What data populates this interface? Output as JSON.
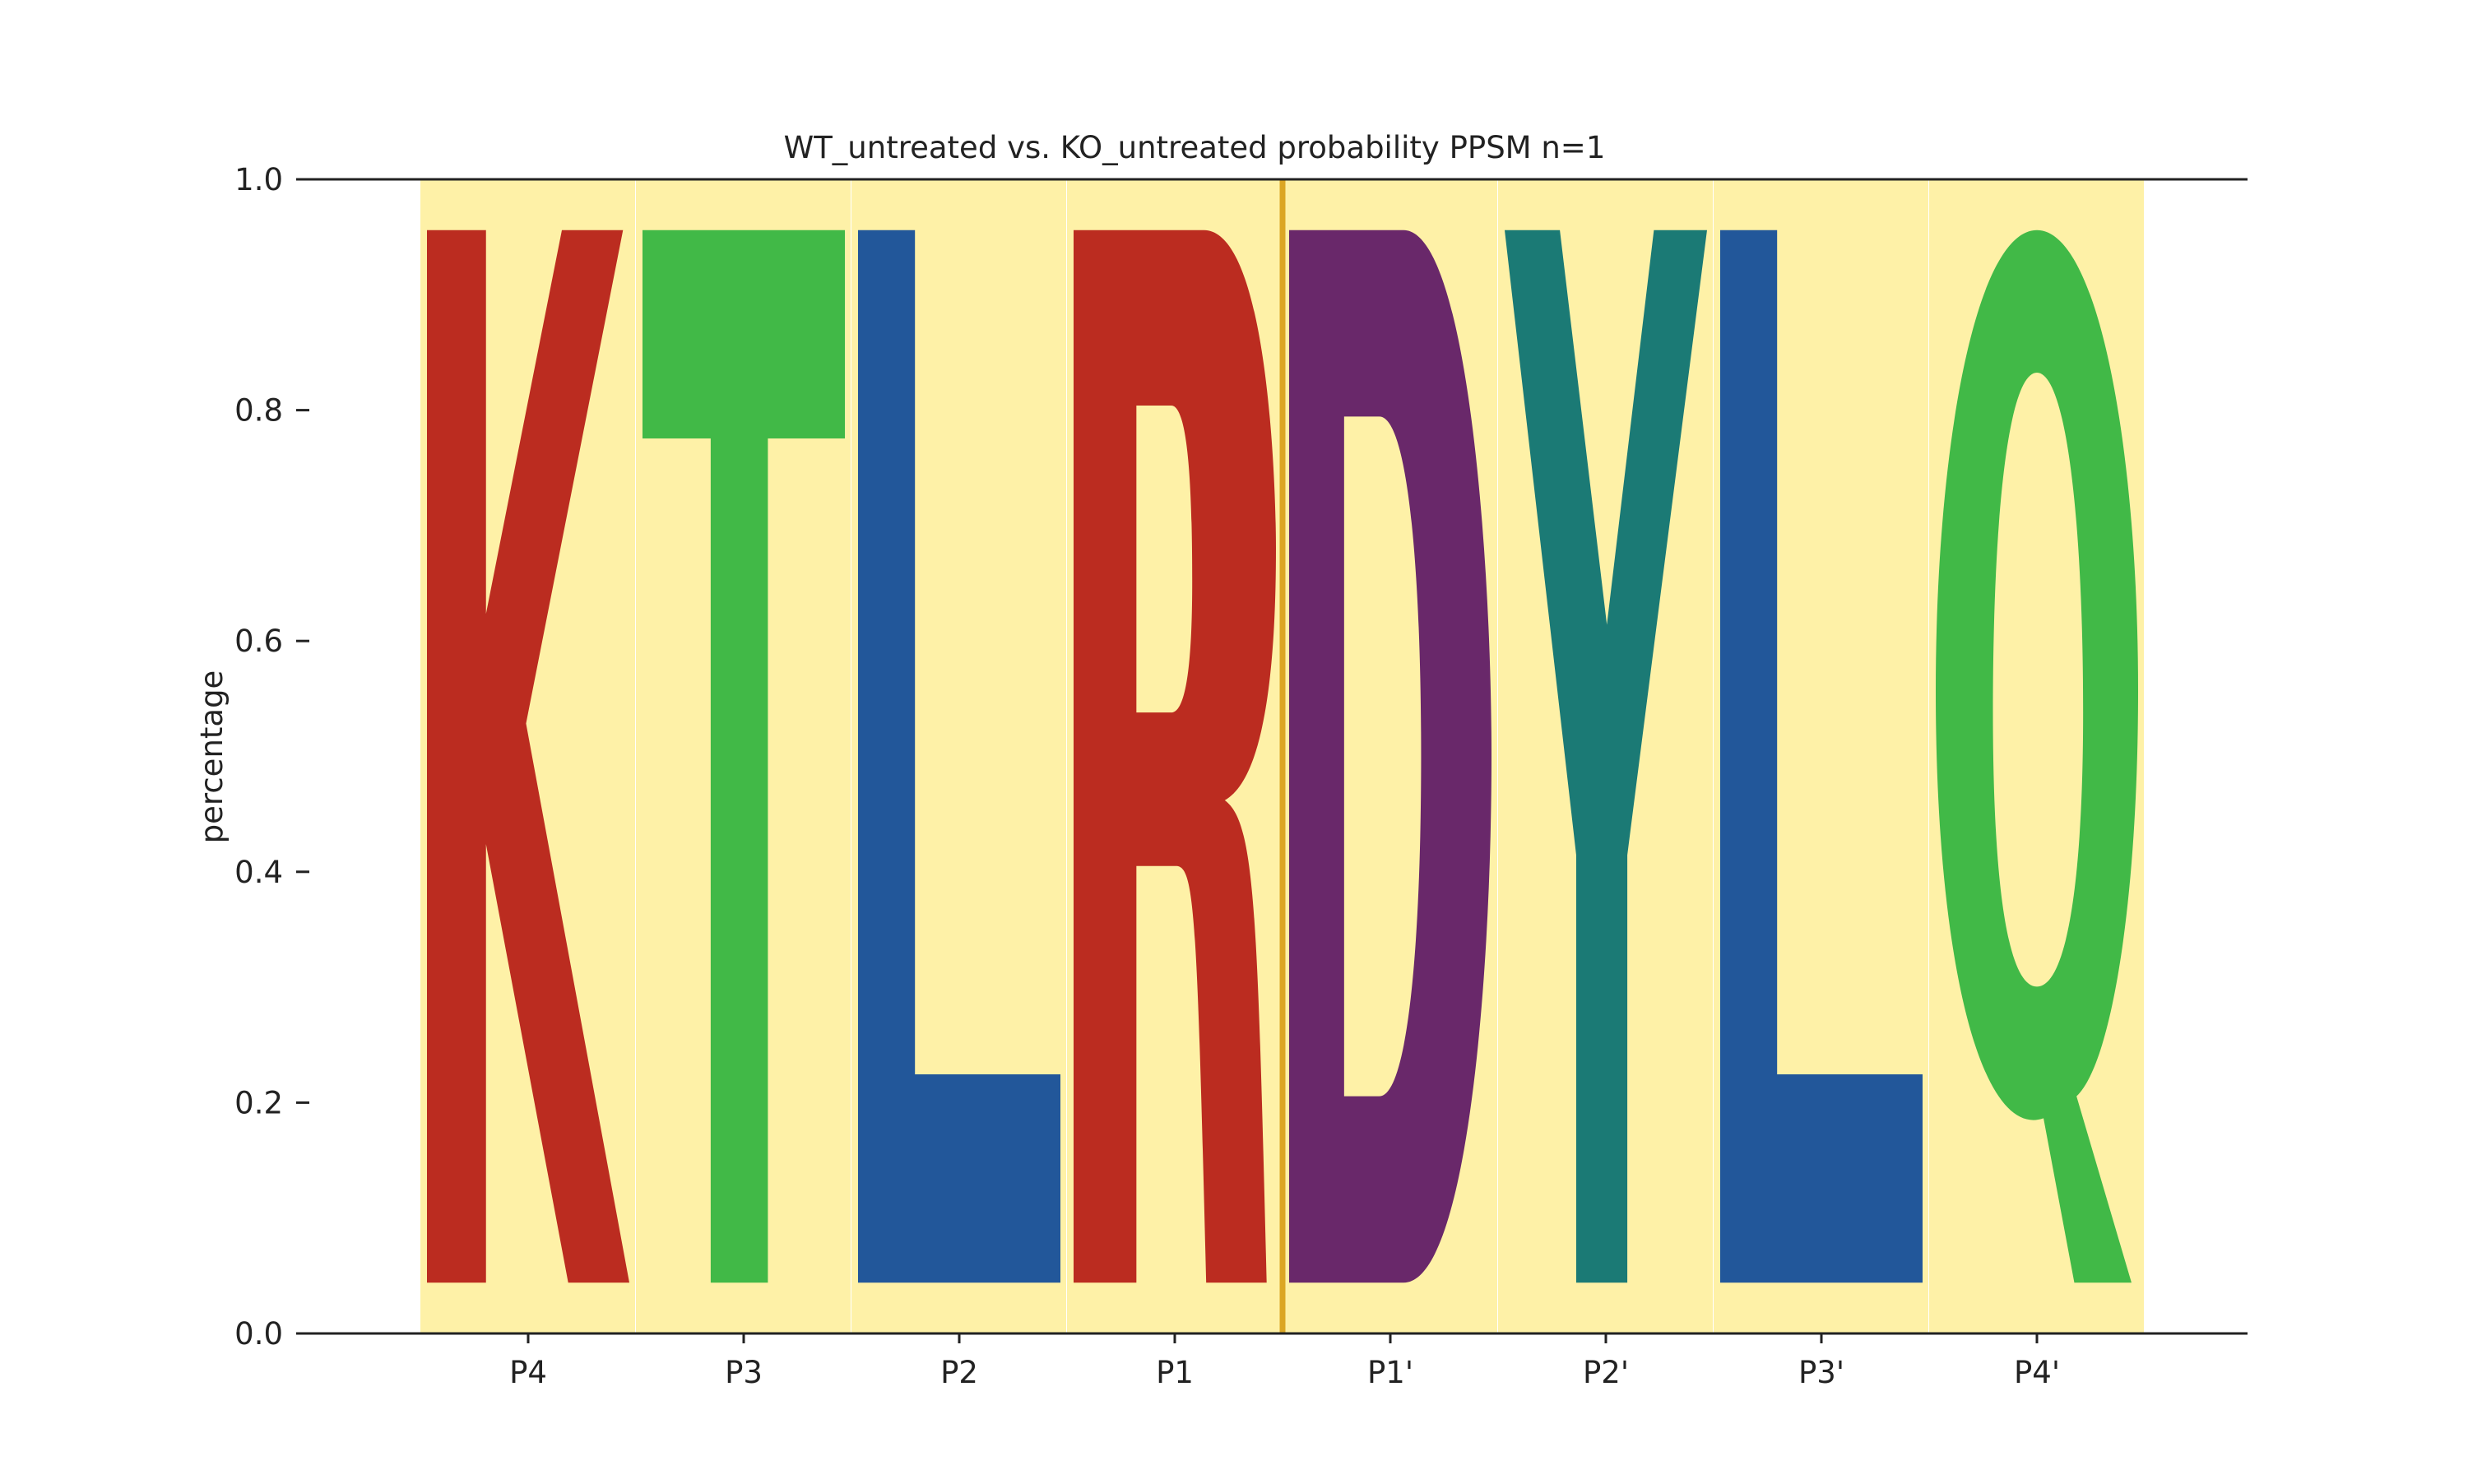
{
  "chart_data": {
    "type": "sequence-logo",
    "title": "WT_untreated vs. KO_untreated probability PPSM n=1",
    "xlabel": "",
    "ylabel": "percentage",
    "ylim": [
      0,
      1
    ],
    "yticks": [
      "0.0",
      "0.2",
      "0.4",
      "0.6",
      "0.8",
      "1.0"
    ],
    "grid": false,
    "positions": [
      "P4",
      "P3",
      "P2",
      "P1",
      "P1'",
      "P2'",
      "P3'",
      "P4'"
    ],
    "letters": [
      "K",
      "T",
      "L",
      "R",
      "D",
      "Y",
      "L",
      "Q"
    ],
    "values": [
      1.0,
      1.0,
      1.0,
      1.0,
      1.0,
      1.0,
      1.0,
      1.0
    ],
    "cleavage_site": "between P1 and P1'",
    "colors": {
      "K": "#bb2c20",
      "R": "#bb2c20",
      "T": "#41b947",
      "Q": "#41b947",
      "L": "#22579a",
      "D": "#69286a",
      "Y": "#1b7a75",
      "background": "#fef1a7",
      "cleavage_line": "#dba624",
      "axis": "#222222"
    }
  }
}
